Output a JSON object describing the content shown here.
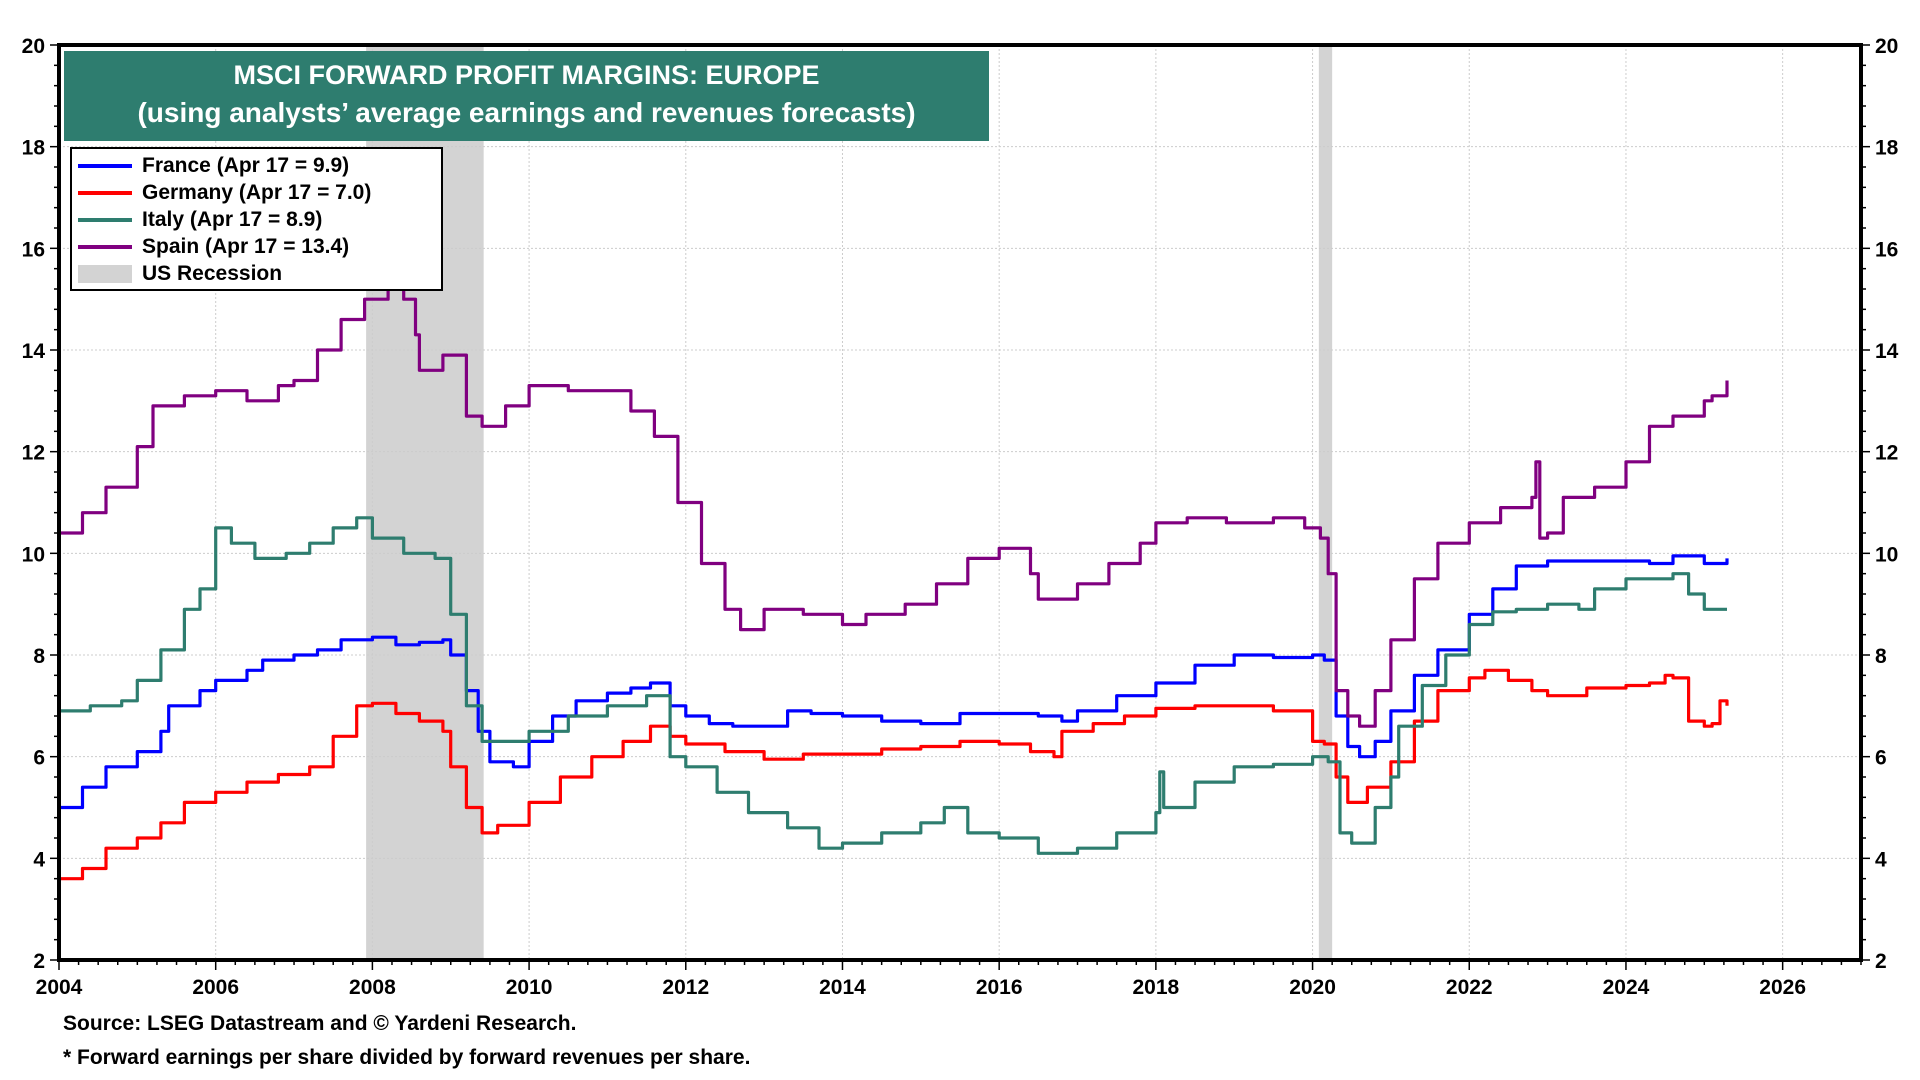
{
  "chart_data": {
    "type": "line",
    "title": "MSCI FORWARD PROFIT MARGINS: EUROPE",
    "subtitle": "(using analysts’ average earnings and revenues forecasts)",
    "xlabel": "",
    "ylabel": "",
    "xlim": [
      2004,
      2027
    ],
    "ylim": [
      2,
      20
    ],
    "x_ticks": [
      "2004",
      "2006",
      "2008",
      "2010",
      "2012",
      "2014",
      "2016",
      "2018",
      "2020",
      "2022",
      "2024",
      "2026"
    ],
    "y_ticks": [
      "2",
      "4",
      "6",
      "8",
      "10",
      "12",
      "14",
      "16",
      "18",
      "20"
    ],
    "y_axis_both_sides": true,
    "grid": true,
    "legend_position": "top-left",
    "recessions": [
      {
        "label": "US Recession",
        "start": 2007.92,
        "end": 2009.42,
        "color": "#d3d3d3"
      },
      {
        "label": "US Recession",
        "start": 2020.08,
        "end": 2020.25,
        "color": "#d3d3d3"
      }
    ],
    "series": [
      {
        "name": "France",
        "legend_label": "France (Apr 17 = 9.9)",
        "color": "#0000ff",
        "x": [
          2004.0,
          2004.3,
          2004.6,
          2005.0,
          2005.3,
          2005.4,
          2005.8,
          2006.0,
          2006.4,
          2006.6,
          2007.0,
          2007.3,
          2007.6,
          2008.0,
          2008.3,
          2008.6,
          2008.9,
          2009.0,
          2009.2,
          2009.35,
          2009.5,
          2009.8,
          2010.0,
          2010.3,
          2010.6,
          2011.0,
          2011.3,
          2011.55,
          2011.8,
          2012.0,
          2012.3,
          2012.6,
          2013.0,
          2013.3,
          2013.6,
          2014.0,
          2014.5,
          2015.0,
          2015.5,
          2016.0,
          2016.5,
          2016.8,
          2017.0,
          2017.5,
          2018.0,
          2018.5,
          2019.0,
          2019.5,
          2020.0,
          2020.15,
          2020.3,
          2020.45,
          2020.6,
          2020.8,
          2021.0,
          2021.3,
          2021.6,
          2022.0,
          2022.3,
          2022.6,
          2023.0,
          2023.5,
          2024.0,
          2024.3,
          2024.6,
          2025.0,
          2025.29
        ],
        "y": [
          5.0,
          5.4,
          5.8,
          6.1,
          6.5,
          7.0,
          7.3,
          7.5,
          7.7,
          7.9,
          8.0,
          8.1,
          8.3,
          8.35,
          8.2,
          8.25,
          8.3,
          8.0,
          7.3,
          6.5,
          5.9,
          5.8,
          6.3,
          6.8,
          7.1,
          7.25,
          7.35,
          7.45,
          7.0,
          6.8,
          6.65,
          6.6,
          6.6,
          6.9,
          6.85,
          6.8,
          6.7,
          6.65,
          6.85,
          6.85,
          6.8,
          6.7,
          6.9,
          7.2,
          7.45,
          7.8,
          8.0,
          7.95,
          8.0,
          7.9,
          6.8,
          6.2,
          6.0,
          6.3,
          6.9,
          7.6,
          8.1,
          8.8,
          9.3,
          9.75,
          9.85,
          9.85,
          9.85,
          9.8,
          9.95,
          9.8,
          9.9
        ]
      },
      {
        "name": "Germany",
        "legend_label": "Germany (Apr 17 = 7.0)",
        "color": "#ff0000",
        "x": [
          2004.0,
          2004.3,
          2004.6,
          2005.0,
          2005.3,
          2005.6,
          2006.0,
          2006.4,
          2006.8,
          2007.2,
          2007.5,
          2007.8,
          2008.0,
          2008.3,
          2008.6,
          2008.9,
          2009.0,
          2009.2,
          2009.4,
          2009.6,
          2010.0,
          2010.4,
          2010.8,
          2011.2,
          2011.55,
          2011.8,
          2012.0,
          2012.5,
          2013.0,
          2013.5,
          2014.0,
          2014.5,
          2015.0,
          2015.5,
          2016.0,
          2016.4,
          2016.7,
          2016.8,
          2017.2,
          2017.6,
          2018.0,
          2018.5,
          2019.0,
          2019.5,
          2020.0,
          2020.15,
          2020.3,
          2020.45,
          2020.7,
          2021.0,
          2021.3,
          2021.6,
          2022.0,
          2022.2,
          2022.5,
          2022.8,
          2023.0,
          2023.5,
          2024.0,
          2024.3,
          2024.5,
          2024.6,
          2024.8,
          2025.0,
          2025.1,
          2025.2,
          2025.29
        ],
        "y": [
          3.6,
          3.8,
          4.2,
          4.4,
          4.7,
          5.1,
          5.3,
          5.5,
          5.65,
          5.8,
          6.4,
          7.0,
          7.05,
          6.85,
          6.7,
          6.5,
          5.8,
          5.0,
          4.5,
          4.65,
          5.1,
          5.6,
          6.0,
          6.3,
          6.6,
          6.4,
          6.25,
          6.1,
          5.95,
          6.05,
          6.05,
          6.15,
          6.2,
          6.3,
          6.25,
          6.1,
          6.0,
          6.5,
          6.65,
          6.8,
          6.95,
          7.0,
          7.0,
          6.9,
          6.3,
          6.25,
          5.6,
          5.1,
          5.4,
          5.9,
          6.7,
          7.3,
          7.55,
          7.7,
          7.5,
          7.3,
          7.2,
          7.35,
          7.4,
          7.45,
          7.6,
          7.55,
          6.7,
          6.6,
          6.65,
          7.1,
          7.0
        ]
      },
      {
        "name": "Italy",
        "legend_label": "Italy (Apr 17 = 8.9)",
        "color": "#2e7d6f",
        "x": [
          2004.0,
          2004.4,
          2004.8,
          2005.0,
          2005.3,
          2005.6,
          2005.8,
          2006.0,
          2006.2,
          2006.5,
          2006.9,
          2007.2,
          2007.5,
          2007.8,
          2008.0,
          2008.4,
          2008.8,
          2009.0,
          2009.2,
          2009.4,
          2009.6,
          2010.0,
          2010.5,
          2011.0,
          2011.5,
          2011.8,
          2012.0,
          2012.4,
          2012.8,
          2013.3,
          2013.7,
          2014.0,
          2014.5,
          2015.0,
          2015.3,
          2015.6,
          2016.0,
          2016.5,
          2017.0,
          2017.5,
          2018.0,
          2018.05,
          2018.1,
          2018.5,
          2019.0,
          2019.5,
          2020.0,
          2020.2,
          2020.35,
          2020.5,
          2020.8,
          2021.0,
          2021.1,
          2021.4,
          2021.7,
          2022.0,
          2022.3,
          2022.6,
          2023.0,
          2023.4,
          2023.6,
          2024.0,
          2024.3,
          2024.6,
          2024.8,
          2025.0,
          2025.29
        ],
        "y": [
          6.9,
          7.0,
          7.1,
          7.5,
          8.1,
          8.9,
          9.3,
          10.5,
          10.2,
          9.9,
          10.0,
          10.2,
          10.5,
          10.7,
          10.3,
          10.0,
          9.9,
          8.8,
          7.0,
          6.3,
          6.3,
          6.5,
          6.8,
          7.0,
          7.2,
          6.0,
          5.8,
          5.3,
          4.9,
          4.6,
          4.2,
          4.3,
          4.5,
          4.7,
          5.0,
          4.5,
          4.4,
          4.1,
          4.2,
          4.5,
          4.9,
          5.7,
          5.0,
          5.5,
          5.8,
          5.85,
          6.0,
          5.9,
          4.5,
          4.3,
          5.0,
          5.6,
          6.6,
          7.4,
          8.0,
          8.6,
          8.85,
          8.9,
          9.0,
          8.9,
          9.3,
          9.5,
          9.5,
          9.6,
          9.2,
          8.9,
          8.9
        ]
      },
      {
        "name": "Spain",
        "legend_label": "Spain (Apr 17 = 13.4)",
        "color": "#800080",
        "x": [
          2004.0,
          2004.3,
          2004.6,
          2005.0,
          2005.2,
          2005.6,
          2006.0,
          2006.4,
          2006.8,
          2007.0,
          2007.3,
          2007.6,
          2007.9,
          2008.2,
          2008.4,
          2008.55,
          2008.6,
          2008.9,
          2009.2,
          2009.4,
          2009.7,
          2010.0,
          2010.5,
          2011.0,
          2011.3,
          2011.6,
          2011.9,
          2012.2,
          2012.5,
          2012.7,
          2013.0,
          2013.5,
          2014.0,
          2014.3,
          2014.8,
          2015.2,
          2015.6,
          2016.0,
          2016.4,
          2016.5,
          2016.6,
          2017.0,
          2017.4,
          2017.8,
          2018.0,
          2018.4,
          2018.9,
          2019.5,
          2019.9,
          2020.1,
          2020.2,
          2020.3,
          2020.45,
          2020.6,
          2020.8,
          2021.0,
          2021.3,
          2021.6,
          2022.0,
          2022.4,
          2022.8,
          2022.85,
          2022.9,
          2023.0,
          2023.2,
          2023.6,
          2024.0,
          2024.3,
          2024.6,
          2025.0,
          2025.1,
          2025.29
        ],
        "y": [
          10.4,
          10.8,
          11.3,
          12.1,
          12.9,
          13.1,
          13.2,
          13.0,
          13.3,
          13.4,
          14.0,
          14.6,
          15.0,
          15.2,
          15.0,
          14.3,
          13.6,
          13.9,
          12.7,
          12.5,
          12.9,
          13.3,
          13.2,
          13.2,
          12.8,
          12.3,
          11.0,
          9.8,
          8.9,
          8.5,
          8.9,
          8.8,
          8.6,
          8.8,
          9.0,
          9.4,
          9.9,
          10.1,
          9.6,
          9.1,
          9.1,
          9.4,
          9.8,
          10.2,
          10.6,
          10.7,
          10.6,
          10.7,
          10.5,
          10.3,
          9.6,
          7.3,
          6.8,
          6.6,
          7.3,
          8.3,
          9.5,
          10.2,
          10.6,
          10.9,
          11.1,
          11.8,
          10.3,
          10.4,
          11.1,
          11.3,
          11.8,
          12.5,
          12.7,
          13.0,
          13.1,
          13.4
        ]
      }
    ]
  },
  "legend": {
    "items": [
      {
        "label": "France (Apr 17 = 9.9)",
        "color": "#0000ff"
      },
      {
        "label": "Germany (Apr 17 = 7.0)",
        "color": "#ff0000"
      },
      {
        "label": "Italy (Apr 17 = 8.9)",
        "color": "#2e7d6f"
      },
      {
        "label": "Spain (Apr 17 = 13.4)",
        "color": "#800080"
      },
      {
        "label": "US Recession",
        "color": "#d3d3d3"
      }
    ]
  },
  "footer": {
    "source": "Source: LSEG Datastream and © Yardeni Research.",
    "note": "* Forward earnings per share divided by forward revenues per share."
  },
  "colors": {
    "title_bg": "#2e7d6f",
    "recession": "#d3d3d3",
    "grid": "#cccccc"
  }
}
